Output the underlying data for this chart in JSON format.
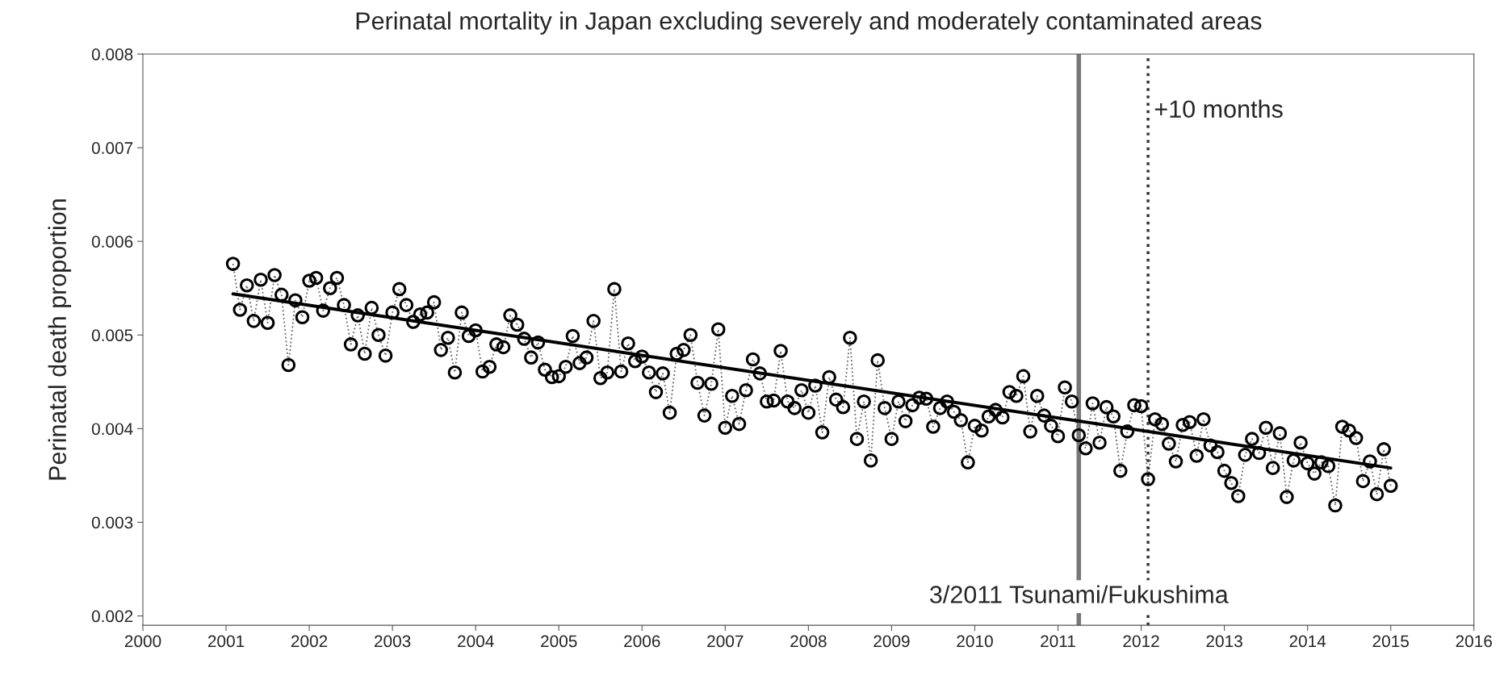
{
  "chart_data": {
    "type": "line",
    "title": "Perinatal mortality in Japan excluding severely and moderately contaminated areas",
    "ylabel": "Perinatal death proportion",
    "xlim": [
      2000,
      2016
    ],
    "xticks": [
      2000,
      2001,
      2002,
      2003,
      2004,
      2005,
      2006,
      2007,
      2008,
      2009,
      2010,
      2011,
      2012,
      2013,
      2014,
      2015,
      2016
    ],
    "ylim": [
      0.0019,
      0.008
    ],
    "yticks": [
      0.002,
      0.003,
      0.004,
      0.005,
      0.006,
      0.007,
      0.008
    ],
    "grid": false,
    "series": [
      {
        "marker": "circle",
        "line_style": "dotted",
        "color": "#000000",
        "x": [
          2001.083,
          2001.167,
          2001.25,
          2001.333,
          2001.417,
          2001.5,
          2001.583,
          2001.667,
          2001.75,
          2001.833,
          2001.917,
          2002.0,
          2002.083,
          2002.167,
          2002.25,
          2002.333,
          2002.417,
          2002.5,
          2002.583,
          2002.667,
          2002.75,
          2002.833,
          2002.917,
          2003.0,
          2003.083,
          2003.167,
          2003.25,
          2003.333,
          2003.417,
          2003.5,
          2003.583,
          2003.667,
          2003.75,
          2003.833,
          2003.917,
          2004.0,
          2004.083,
          2004.167,
          2004.25,
          2004.333,
          2004.417,
          2004.5,
          2004.583,
          2004.667,
          2004.75,
          2004.833,
          2004.917,
          2005.0,
          2005.083,
          2005.167,
          2005.25,
          2005.333,
          2005.417,
          2005.5,
          2005.583,
          2005.667,
          2005.75,
          2005.833,
          2005.917,
          2006.0,
          2006.083,
          2006.167,
          2006.25,
          2006.333,
          2006.417,
          2006.5,
          2006.583,
          2006.667,
          2006.75,
          2006.833,
          2006.917,
          2007.0,
          2007.083,
          2007.167,
          2007.25,
          2007.333,
          2007.417,
          2007.5,
          2007.583,
          2007.667,
          2007.75,
          2007.833,
          2007.917,
          2008.0,
          2008.083,
          2008.167,
          2008.25,
          2008.333,
          2008.417,
          2008.5,
          2008.583,
          2008.667,
          2008.75,
          2008.833,
          2008.917,
          2009.0,
          2009.083,
          2009.167,
          2009.25,
          2009.333,
          2009.417,
          2009.5,
          2009.583,
          2009.667,
          2009.75,
          2009.833,
          2009.917,
          2010.0,
          2010.083,
          2010.167,
          2010.25,
          2010.333,
          2010.417,
          2010.5,
          2010.583,
          2010.667,
          2010.75,
          2010.833,
          2010.917,
          2011.0,
          2011.083,
          2011.167,
          2011.25,
          2011.333,
          2011.417,
          2011.5,
          2011.583,
          2011.667,
          2011.75,
          2011.833,
          2011.917,
          2012.0,
          2012.083,
          2012.167,
          2012.25,
          2012.333,
          2012.417,
          2012.5,
          2012.583,
          2012.667,
          2012.75,
          2012.833,
          2012.917,
          2013.0,
          2013.083,
          2013.167,
          2013.25,
          2013.333,
          2013.417,
          2013.5,
          2013.583,
          2013.667,
          2013.75,
          2013.833,
          2013.917,
          2014.0,
          2014.083,
          2014.167,
          2014.25,
          2014.333,
          2014.417,
          2014.5,
          2014.583,
          2014.667,
          2014.75,
          2014.833,
          2014.917,
          2015.0
        ],
        "values": [
          0.00576,
          0.00527,
          0.00553,
          0.00515,
          0.00559,
          0.00513,
          0.00564,
          0.00543,
          0.00468,
          0.00537,
          0.00519,
          0.00558,
          0.00561,
          0.00526,
          0.0055,
          0.00561,
          0.00532,
          0.0049,
          0.00521,
          0.0048,
          0.00529,
          0.005,
          0.00478,
          0.00524,
          0.00549,
          0.00532,
          0.00514,
          0.00522,
          0.00524,
          0.00535,
          0.00484,
          0.00497,
          0.0046,
          0.00524,
          0.00499,
          0.00505,
          0.00461,
          0.00466,
          0.0049,
          0.00487,
          0.00521,
          0.00511,
          0.00496,
          0.00476,
          0.00492,
          0.00463,
          0.00455,
          0.00456,
          0.00466,
          0.00499,
          0.0047,
          0.00476,
          0.00515,
          0.00454,
          0.0046,
          0.00549,
          0.00461,
          0.00491,
          0.00472,
          0.00477,
          0.0046,
          0.00439,
          0.00459,
          0.00417,
          0.0048,
          0.00484,
          0.005,
          0.00449,
          0.00414,
          0.00448,
          0.00506,
          0.00401,
          0.00435,
          0.00405,
          0.00441,
          0.00474,
          0.00459,
          0.00429,
          0.0043,
          0.00483,
          0.00429,
          0.00422,
          0.00441,
          0.00417,
          0.00446,
          0.00396,
          0.00455,
          0.00431,
          0.00423,
          0.00497,
          0.00389,
          0.00429,
          0.00366,
          0.00473,
          0.00422,
          0.00389,
          0.00429,
          0.00408,
          0.00425,
          0.00433,
          0.00432,
          0.00402,
          0.00422,
          0.00429,
          0.00418,
          0.00409,
          0.00364,
          0.00403,
          0.00398,
          0.00413,
          0.0042,
          0.00412,
          0.00439,
          0.00435,
          0.00456,
          0.00397,
          0.00435,
          0.00414,
          0.00403,
          0.00392,
          0.00444,
          0.00429,
          0.00393,
          0.00379,
          0.00427,
          0.00385,
          0.00423,
          0.00413,
          0.00355,
          0.00397,
          0.00425,
          0.00424,
          0.00346,
          0.0041,
          0.00405,
          0.00384,
          0.00365,
          0.00404,
          0.00407,
          0.00371,
          0.0041,
          0.00382,
          0.00375,
          0.00355,
          0.00342,
          0.00328,
          0.00372,
          0.00389,
          0.00374,
          0.00401,
          0.00358,
          0.00395,
          0.00327,
          0.00366,
          0.00385,
          0.00363,
          0.00352,
          0.00364,
          0.0036,
          0.00318,
          0.00402,
          0.00398,
          0.0039,
          0.00344,
          0.00365,
          0.0033,
          0.00378,
          0.00339
        ]
      },
      {
        "marker": "none",
        "line_style": "solid",
        "color": "#000000",
        "x": [
          2001.083,
          2015.0
        ],
        "values": [
          0.00544,
          0.00358
        ]
      }
    ],
    "ref_lines": [
      {
        "axis": "x",
        "value": 2011.25,
        "label": "3/2011 Tsunami/Fukushima",
        "color": "#777777",
        "line_style": "solid"
      },
      {
        "axis": "x",
        "value": 2012.083,
        "label": "+10 months",
        "color": "#333333",
        "line_style": "dotted"
      }
    ]
  }
}
